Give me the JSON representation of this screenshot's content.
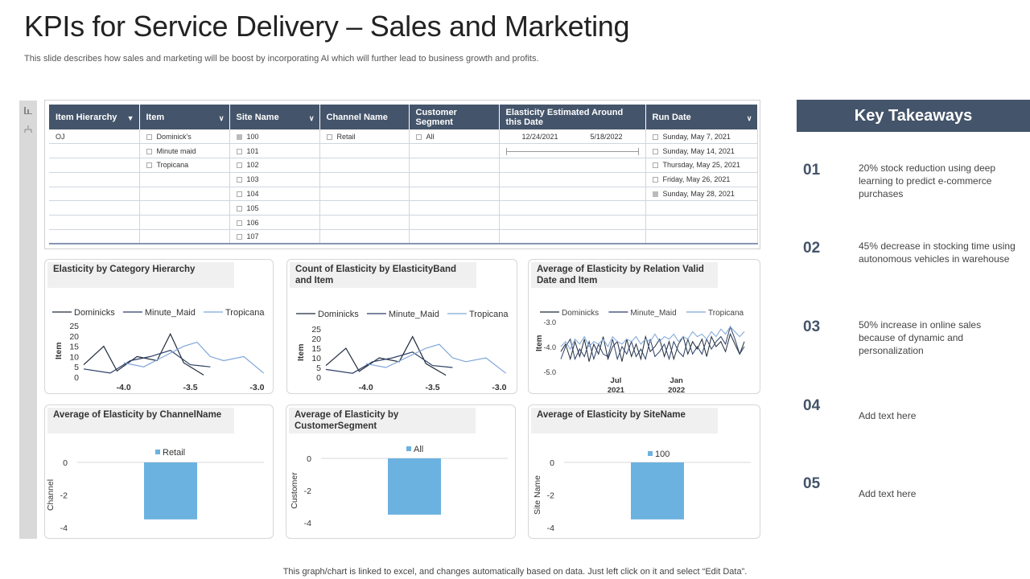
{
  "page": {
    "title": "KPIs for Service Delivery – Sales and Marketing",
    "subtitle": "This slide describes how sales and marketing will be boost by incorporating AI which will further lead to  business growth and profits.",
    "footer": "This graph/chart is linked to excel,  and changes automatically based on data. Just left click on it and select “Edit Data”."
  },
  "toolbar": {
    "icons": [
      "bar-chart-icon",
      "hierarchy-icon"
    ]
  },
  "table": {
    "headers": [
      "Item Hierarchy",
      "Item",
      "Site Name",
      "Channel Name",
      "Customer Segment",
      "Elasticity Estimated Around this Date",
      "Run Date"
    ],
    "hierarchy": [
      "OJ"
    ],
    "items": [
      "Dominick's",
      "Minute maid",
      "Tropicana"
    ],
    "sites": [
      "100",
      "101",
      "102",
      "103",
      "104",
      "105",
      "106",
      "107"
    ],
    "channels": [
      "Retail"
    ],
    "segments": [
      "All"
    ],
    "date_range": {
      "start": "12/24/2021",
      "end": "5/18/2022"
    },
    "run_dates": [
      "Sunday, May 7, 2021",
      "Sunday, May 14, 2021",
      "Thursday, May 25, 2021",
      "Friday, May 26, 2021",
      "Sunday, May 28, 2021"
    ]
  },
  "charts": {
    "c1_title": "Elasticity by Category Hierarchy",
    "c2_title": "Count of Elasticity by ElasticityBand and Item",
    "c3_title": "Average of Elasticity by Relation Valid Date and Item",
    "c4_title": "Average of Elasticity by ChannelName",
    "c5_title": "Average of Elasticity by CustomerSegment",
    "c6_title": "Average of Elasticity by SiteName"
  },
  "chart_data": [
    {
      "type": "line",
      "title": "Elasticity by Category Hierarchy",
      "ylabel": "Item",
      "ylim": [
        0,
        25
      ],
      "yticks": [
        "25",
        "20",
        "15",
        "10",
        "5",
        "0"
      ],
      "xticks": [
        "-4.0",
        "-3.5",
        "-3.0"
      ],
      "xlim": [
        -4.3,
        -2.9
      ],
      "series": [
        {
          "name": "Dominicks",
          "color": "#1f2a3a",
          "x": [
            -4.3,
            -4.15,
            -4.05,
            -3.9,
            -3.75,
            -3.65,
            -3.55,
            -3.4
          ],
          "y": [
            6,
            15,
            3,
            10,
            8,
            21,
            7,
            1
          ]
        },
        {
          "name": "Minute_Maid",
          "color": "#2b3f66",
          "x": [
            -4.3,
            -4.1,
            -3.95,
            -3.8,
            -3.65,
            -3.5,
            -3.35
          ],
          "y": [
            4,
            2,
            8,
            10,
            13,
            6,
            5
          ]
        },
        {
          "name": "Tropicana",
          "color": "#7fa6d8",
          "x": [
            -4.0,
            -3.85,
            -3.7,
            -3.55,
            -3.45,
            -3.35,
            -3.25,
            -3.1,
            -2.95
          ],
          "y": [
            7,
            5,
            10,
            15,
            17,
            10,
            8,
            10,
            2
          ]
        }
      ]
    },
    {
      "type": "line",
      "title": "Count of Elasticity by ElasticityBand and Item",
      "ylabel": "Item",
      "ylim": [
        0,
        25
      ],
      "yticks": [
        "25",
        "20",
        "15",
        "10",
        "5",
        "0"
      ],
      "xticks": [
        "-4.0",
        "-3.5",
        "-3.0"
      ],
      "xlim": [
        -4.3,
        -2.9
      ],
      "series": [
        {
          "name": "Dominicks",
          "color": "#1f2a3a",
          "x": [
            -4.3,
            -4.15,
            -4.05,
            -3.9,
            -3.75,
            -3.65,
            -3.55,
            -3.4
          ],
          "y": [
            6,
            15,
            3,
            10,
            8,
            21,
            7,
            1
          ]
        },
        {
          "name": "Minute_Maid",
          "color": "#2b3f66",
          "x": [
            -4.3,
            -4.1,
            -3.95,
            -3.8,
            -3.65,
            -3.5,
            -3.35
          ],
          "y": [
            4,
            2,
            8,
            10,
            13,
            6,
            5
          ]
        },
        {
          "name": "Tropicana",
          "color": "#7fa6d8",
          "x": [
            -4.0,
            -3.85,
            -3.7,
            -3.55,
            -3.45,
            -3.35,
            -3.25,
            -3.1,
            -2.95
          ],
          "y": [
            7,
            5,
            10,
            15,
            17,
            10,
            8,
            10,
            2
          ]
        }
      ]
    },
    {
      "type": "line",
      "title": "Average of Elasticity by Relation Valid Date and Item",
      "ylabel": "Item",
      "ylim": [
        -5.0,
        -3.0
      ],
      "yticks": [
        "-3.0",
        "-4.0",
        "-5.0"
      ],
      "xticks": [
        "Jul 2021",
        "Jan 2022"
      ],
      "series": [
        {
          "name": "Dominicks",
          "color": "#1f2a3a",
          "values": [
            -4.2,
            -3.9,
            -4.5,
            -3.8,
            -4.4,
            -3.7,
            -4.6,
            -3.9,
            -4.3,
            -3.6,
            -4.5,
            -4.0,
            -3.8,
            -4.6,
            -3.7,
            -4.4,
            -3.9,
            -4.5,
            -3.6,
            -4.2,
            -4.0,
            -3.7,
            -4.4,
            -3.8,
            -4.5,
            -3.9,
            -3.6,
            -4.3,
            -3.8,
            -4.1,
            -3.7,
            -4.4,
            -3.6,
            -4.0,
            -3.8,
            -4.2,
            -3.5,
            -3.9,
            -4.3,
            -3.8
          ]
        },
        {
          "name": "Minute_Maid",
          "color": "#2b3f66",
          "values": [
            -4.5,
            -4.0,
            -3.7,
            -4.5,
            -4.1,
            -4.4,
            -3.8,
            -4.5,
            -3.9,
            -4.3,
            -4.4,
            -3.7,
            -4.5,
            -4.0,
            -4.3,
            -3.8,
            -4.4,
            -4.1,
            -4.5,
            -3.7,
            -4.4,
            -4.2,
            -3.9,
            -4.5,
            -3.8,
            -4.2,
            -4.4,
            -3.7,
            -4.3,
            -4.0,
            -4.3,
            -3.7,
            -4.1,
            -3.8,
            -3.6,
            -3.9,
            -3.2,
            -3.7,
            -4.3,
            -4.0
          ]
        },
        {
          "name": "Tropicana",
          "color": "#7fa6d8",
          "values": [
            -4.0,
            -3.8,
            -4.1,
            -3.7,
            -3.9,
            -3.6,
            -4.0,
            -3.8,
            -3.9,
            -3.7,
            -4.0,
            -3.6,
            -3.8,
            -3.9,
            -3.7,
            -3.8,
            -3.6,
            -3.9,
            -3.7,
            -3.8,
            -3.5,
            -3.8,
            -3.6,
            -3.7,
            -3.5,
            -3.8,
            -3.6,
            -3.7,
            -3.4,
            -3.6,
            -3.5,
            -3.7,
            -3.4,
            -3.6,
            -3.3,
            -3.5,
            -3.2,
            -3.4,
            -3.6,
            -3.4
          ]
        }
      ]
    },
    {
      "type": "bar",
      "title": "Average of Elasticity by ChannelName",
      "ylabel": "Channel",
      "legend": "Retail",
      "categories": [
        "Retail"
      ],
      "values": [
        -3.5
      ],
      "ylim": [
        -4,
        0
      ],
      "yticks": [
        "0",
        "-2",
        "-4"
      ]
    },
    {
      "type": "bar",
      "title": "Average of Elasticity by CustomerSegment",
      "ylabel": "Customer",
      "legend": "All",
      "categories": [
        "All"
      ],
      "values": [
        -3.5
      ],
      "ylim": [
        -4,
        0
      ],
      "yticks": [
        "0",
        "-2",
        "-4"
      ]
    },
    {
      "type": "bar",
      "title": "Average of Elasticity by SiteName",
      "ylabel": "Site Name",
      "legend": "100",
      "categories": [
        "100"
      ],
      "values": [
        -3.5
      ],
      "ylim": [
        -4,
        0
      ],
      "yticks": [
        "0",
        "-2",
        "-4"
      ]
    }
  ],
  "takeaways": {
    "header": "Key Takeaways",
    "items": [
      {
        "num": "01",
        "text": "20% stock reduction using deep learning to predict e-commerce purchases"
      },
      {
        "num": "02",
        "text": "45% decrease in stocking time using autonomous vehicles in warehouse"
      },
      {
        "num": "03",
        "text": "50% increase in online sales because of dynamic and personalization"
      },
      {
        "num": "04",
        "text": "Add text here"
      },
      {
        "num": "05",
        "text": "Add text here"
      }
    ]
  },
  "colors": {
    "header_bg": "#44546a",
    "bar": "#6cb2e0"
  }
}
